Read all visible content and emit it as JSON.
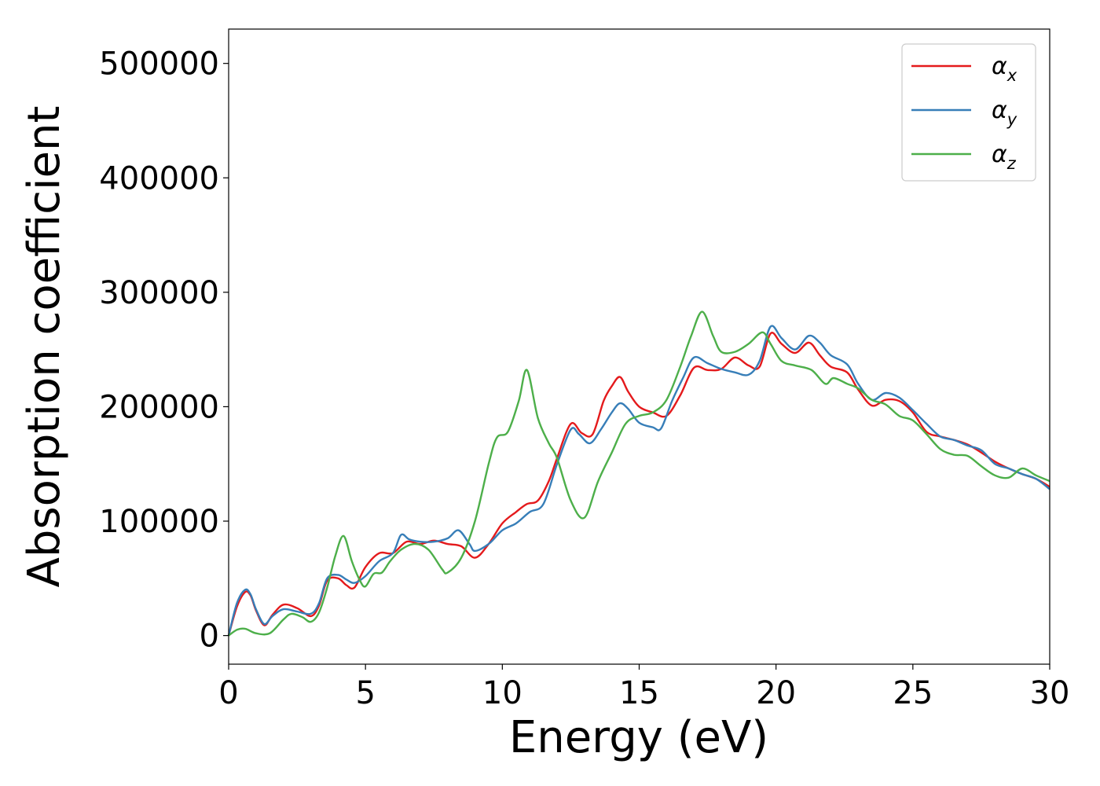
{
  "chart_data": {
    "type": "line",
    "xlabel": "Energy (eV)",
    "ylabel": "Absorption coefficient",
    "xlim": [
      0,
      30
    ],
    "ylim": [
      -25000,
      530000
    ],
    "xticks": [
      0,
      5,
      10,
      15,
      20,
      25,
      30
    ],
    "xtick_labels": [
      "0",
      "5",
      "10",
      "15",
      "20",
      "25",
      "30"
    ],
    "yticks": [
      0,
      100000,
      200000,
      300000,
      400000,
      500000
    ],
    "ytick_labels": [
      "0",
      "100000",
      "200000",
      "300000",
      "400000",
      "500000"
    ],
    "grid": false,
    "legend_position": "top-right",
    "series": [
      {
        "name": "α",
        "subscript": "x",
        "color": "#e41a1c",
        "x": [
          0,
          0.3,
          0.6,
          0.8,
          1.0,
          1.3,
          1.6,
          2.0,
          2.5,
          3.0,
          3.3,
          3.6,
          4.0,
          4.3,
          4.6,
          5.0,
          5.5,
          6.0,
          6.5,
          7.0,
          7.5,
          8.0,
          8.5,
          9.0,
          9.5,
          10.0,
          10.5,
          10.9,
          11.3,
          11.7,
          12.0,
          12.5,
          12.9,
          13.3,
          13.7,
          14.0,
          14.3,
          14.6,
          15.0,
          15.5,
          16.0,
          16.5,
          17.0,
          17.5,
          18.0,
          18.5,
          19.0,
          19.4,
          19.8,
          20.2,
          20.7,
          21.2,
          21.6,
          22.0,
          22.6,
          23.0,
          23.5,
          24.0,
          24.5,
          25.0,
          25.5,
          26.0,
          26.5,
          27.0,
          27.5,
          28.0,
          28.5,
          29.0,
          29.5,
          30.0
        ],
        "values": [
          0,
          25000,
          38000,
          35000,
          22000,
          9000,
          18000,
          27000,
          24000,
          17000,
          26000,
          48000,
          50000,
          44000,
          42000,
          60000,
          72000,
          72000,
          82000,
          80000,
          83000,
          80000,
          78000,
          68000,
          80000,
          98000,
          108000,
          115000,
          118000,
          135000,
          155000,
          185000,
          177000,
          176000,
          205000,
          218000,
          226000,
          213000,
          200000,
          195000,
          192000,
          210000,
          234000,
          232000,
          233000,
          243000,
          236000,
          235000,
          264000,
          255000,
          247000,
          256000,
          245000,
          235000,
          230000,
          215000,
          201000,
          206000,
          205000,
          195000,
          178000,
          174000,
          171000,
          167000,
          160000,
          152000,
          146000,
          141000,
          137000,
          130000
        ]
      },
      {
        "name": "α",
        "subscript": "y",
        "color": "#377eb8",
        "x": [
          0,
          0.3,
          0.6,
          0.8,
          1.0,
          1.3,
          1.6,
          2.0,
          2.5,
          3.0,
          3.3,
          3.6,
          4.0,
          4.3,
          4.6,
          5.0,
          5.5,
          6.0,
          6.3,
          6.6,
          7.0,
          7.5,
          8.0,
          8.4,
          8.8,
          9.0,
          9.5,
          10.0,
          10.5,
          11.0,
          11.5,
          12.0,
          12.5,
          12.8,
          13.2,
          13.6,
          14.0,
          14.3,
          14.6,
          15.0,
          15.5,
          15.8,
          16.2,
          16.6,
          17.0,
          17.5,
          18.0,
          18.5,
          19.0,
          19.4,
          19.8,
          20.2,
          20.7,
          21.2,
          21.6,
          22.0,
          22.6,
          23.0,
          23.5,
          24.0,
          24.5,
          25.0,
          25.5,
          26.0,
          26.5,
          27.0,
          27.5,
          28.0,
          28.5,
          29.0,
          29.5,
          30.0
        ],
        "values": [
          0,
          28000,
          40000,
          36000,
          23000,
          10000,
          17000,
          23000,
          21000,
          19000,
          28000,
          50000,
          53000,
          49000,
          46000,
          52000,
          65000,
          72000,
          88000,
          84000,
          82000,
          82000,
          85000,
          92000,
          80000,
          74000,
          80000,
          92000,
          98000,
          108000,
          115000,
          150000,
          180000,
          176000,
          168000,
          180000,
          195000,
          203000,
          198000,
          186000,
          182000,
          181000,
          205000,
          225000,
          243000,
          238000,
          233000,
          230000,
          228000,
          240000,
          270000,
          260000,
          250000,
          262000,
          256000,
          245000,
          237000,
          220000,
          206000,
          212000,
          208000,
          197000,
          185000,
          174000,
          171000,
          166000,
          162000,
          150000,
          146000,
          141000,
          137000,
          128000
        ]
      },
      {
        "name": "α",
        "subscript": "z",
        "color": "#4daf4a",
        "x": [
          0,
          0.3,
          0.6,
          1.0,
          1.5,
          2.0,
          2.3,
          2.7,
          3.0,
          3.3,
          3.6,
          3.9,
          4.2,
          4.5,
          4.8,
          5.0,
          5.3,
          5.6,
          5.9,
          6.3,
          6.8,
          7.3,
          7.8,
          8.0,
          8.5,
          9.0,
          9.5,
          9.8,
          10.2,
          10.6,
          10.9,
          11.3,
          11.7,
          12.0,
          12.5,
          13.0,
          13.5,
          14.0,
          14.5,
          15.0,
          15.5,
          16.0,
          16.5,
          16.9,
          17.3,
          17.7,
          18.0,
          18.5,
          19.0,
          19.5,
          19.8,
          20.2,
          20.7,
          21.3,
          21.8,
          22.1,
          22.6,
          23.0,
          23.5,
          24.0,
          24.5,
          25.0,
          25.5,
          26.0,
          26.5,
          27.0,
          27.5,
          28.0,
          28.5,
          29.0,
          29.5,
          30.0
        ],
        "values": [
          0,
          5000,
          6000,
          2000,
          2000,
          14000,
          19000,
          16000,
          12000,
          20000,
          42000,
          70000,
          87000,
          65000,
          48000,
          43000,
          54000,
          55000,
          65000,
          75000,
          80000,
          75000,
          58000,
          55000,
          68000,
          100000,
          150000,
          173000,
          178000,
          205000,
          232000,
          190000,
          168000,
          155000,
          118000,
          103000,
          135000,
          160000,
          185000,
          192000,
          195000,
          206000,
          235000,
          262000,
          283000,
          262000,
          248000,
          248000,
          255000,
          265000,
          255000,
          240000,
          236000,
          232000,
          220000,
          225000,
          220000,
          216000,
          206000,
          202000,
          192000,
          188000,
          176000,
          163000,
          158000,
          157000,
          148000,
          140000,
          138000,
          146000,
          140000,
          135000
        ]
      }
    ]
  }
}
